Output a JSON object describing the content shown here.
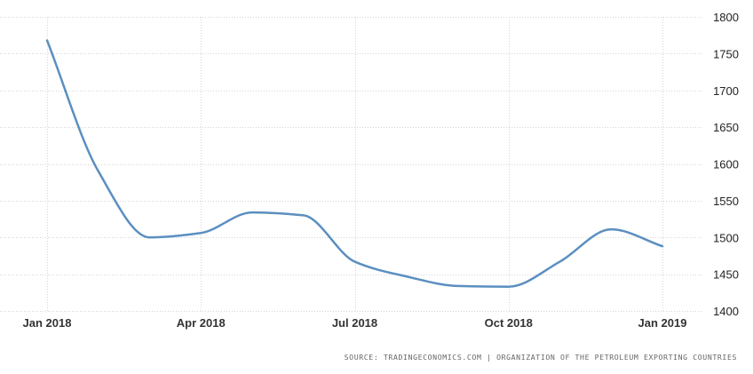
{
  "chart_data": {
    "type": "line",
    "title": "",
    "xlabel": "",
    "ylabel": "",
    "x": [
      "2018-01",
      "2018-02",
      "2018-03",
      "2018-04",
      "2018-05",
      "2018-06",
      "2018-07",
      "2018-08",
      "2018-09",
      "2018-10",
      "2018-11",
      "2018-12",
      "2019-01"
    ],
    "series": [
      {
        "values": [
          1768,
          1590,
          1500,
          1506,
          1534,
          1530,
          1467,
          1447,
          1434,
          1433,
          1467,
          1511,
          1488
        ],
        "color": "#5b8fc0"
      }
    ],
    "ylim": [
      1400,
      1800
    ],
    "y_ticks": [
      1400,
      1450,
      1500,
      1550,
      1600,
      1650,
      1700,
      1750,
      1800
    ],
    "x_tick_labels": [
      {
        "x": "2018-01",
        "label": "Jan 2018"
      },
      {
        "x": "2018-04",
        "label": "Apr 2018"
      },
      {
        "x": "2018-07",
        "label": "Jul 2018"
      },
      {
        "x": "2018-10",
        "label": "Oct 2018"
      },
      {
        "x": "2019-01",
        "label": "Jan 2019"
      }
    ],
    "y_axis_position": "right",
    "grid": true
  },
  "source_text": "SOURCE: TRADINGECONOMICS.COM | ORGANIZATION OF THE PETROLEUM EXPORTING COUNTRIES"
}
